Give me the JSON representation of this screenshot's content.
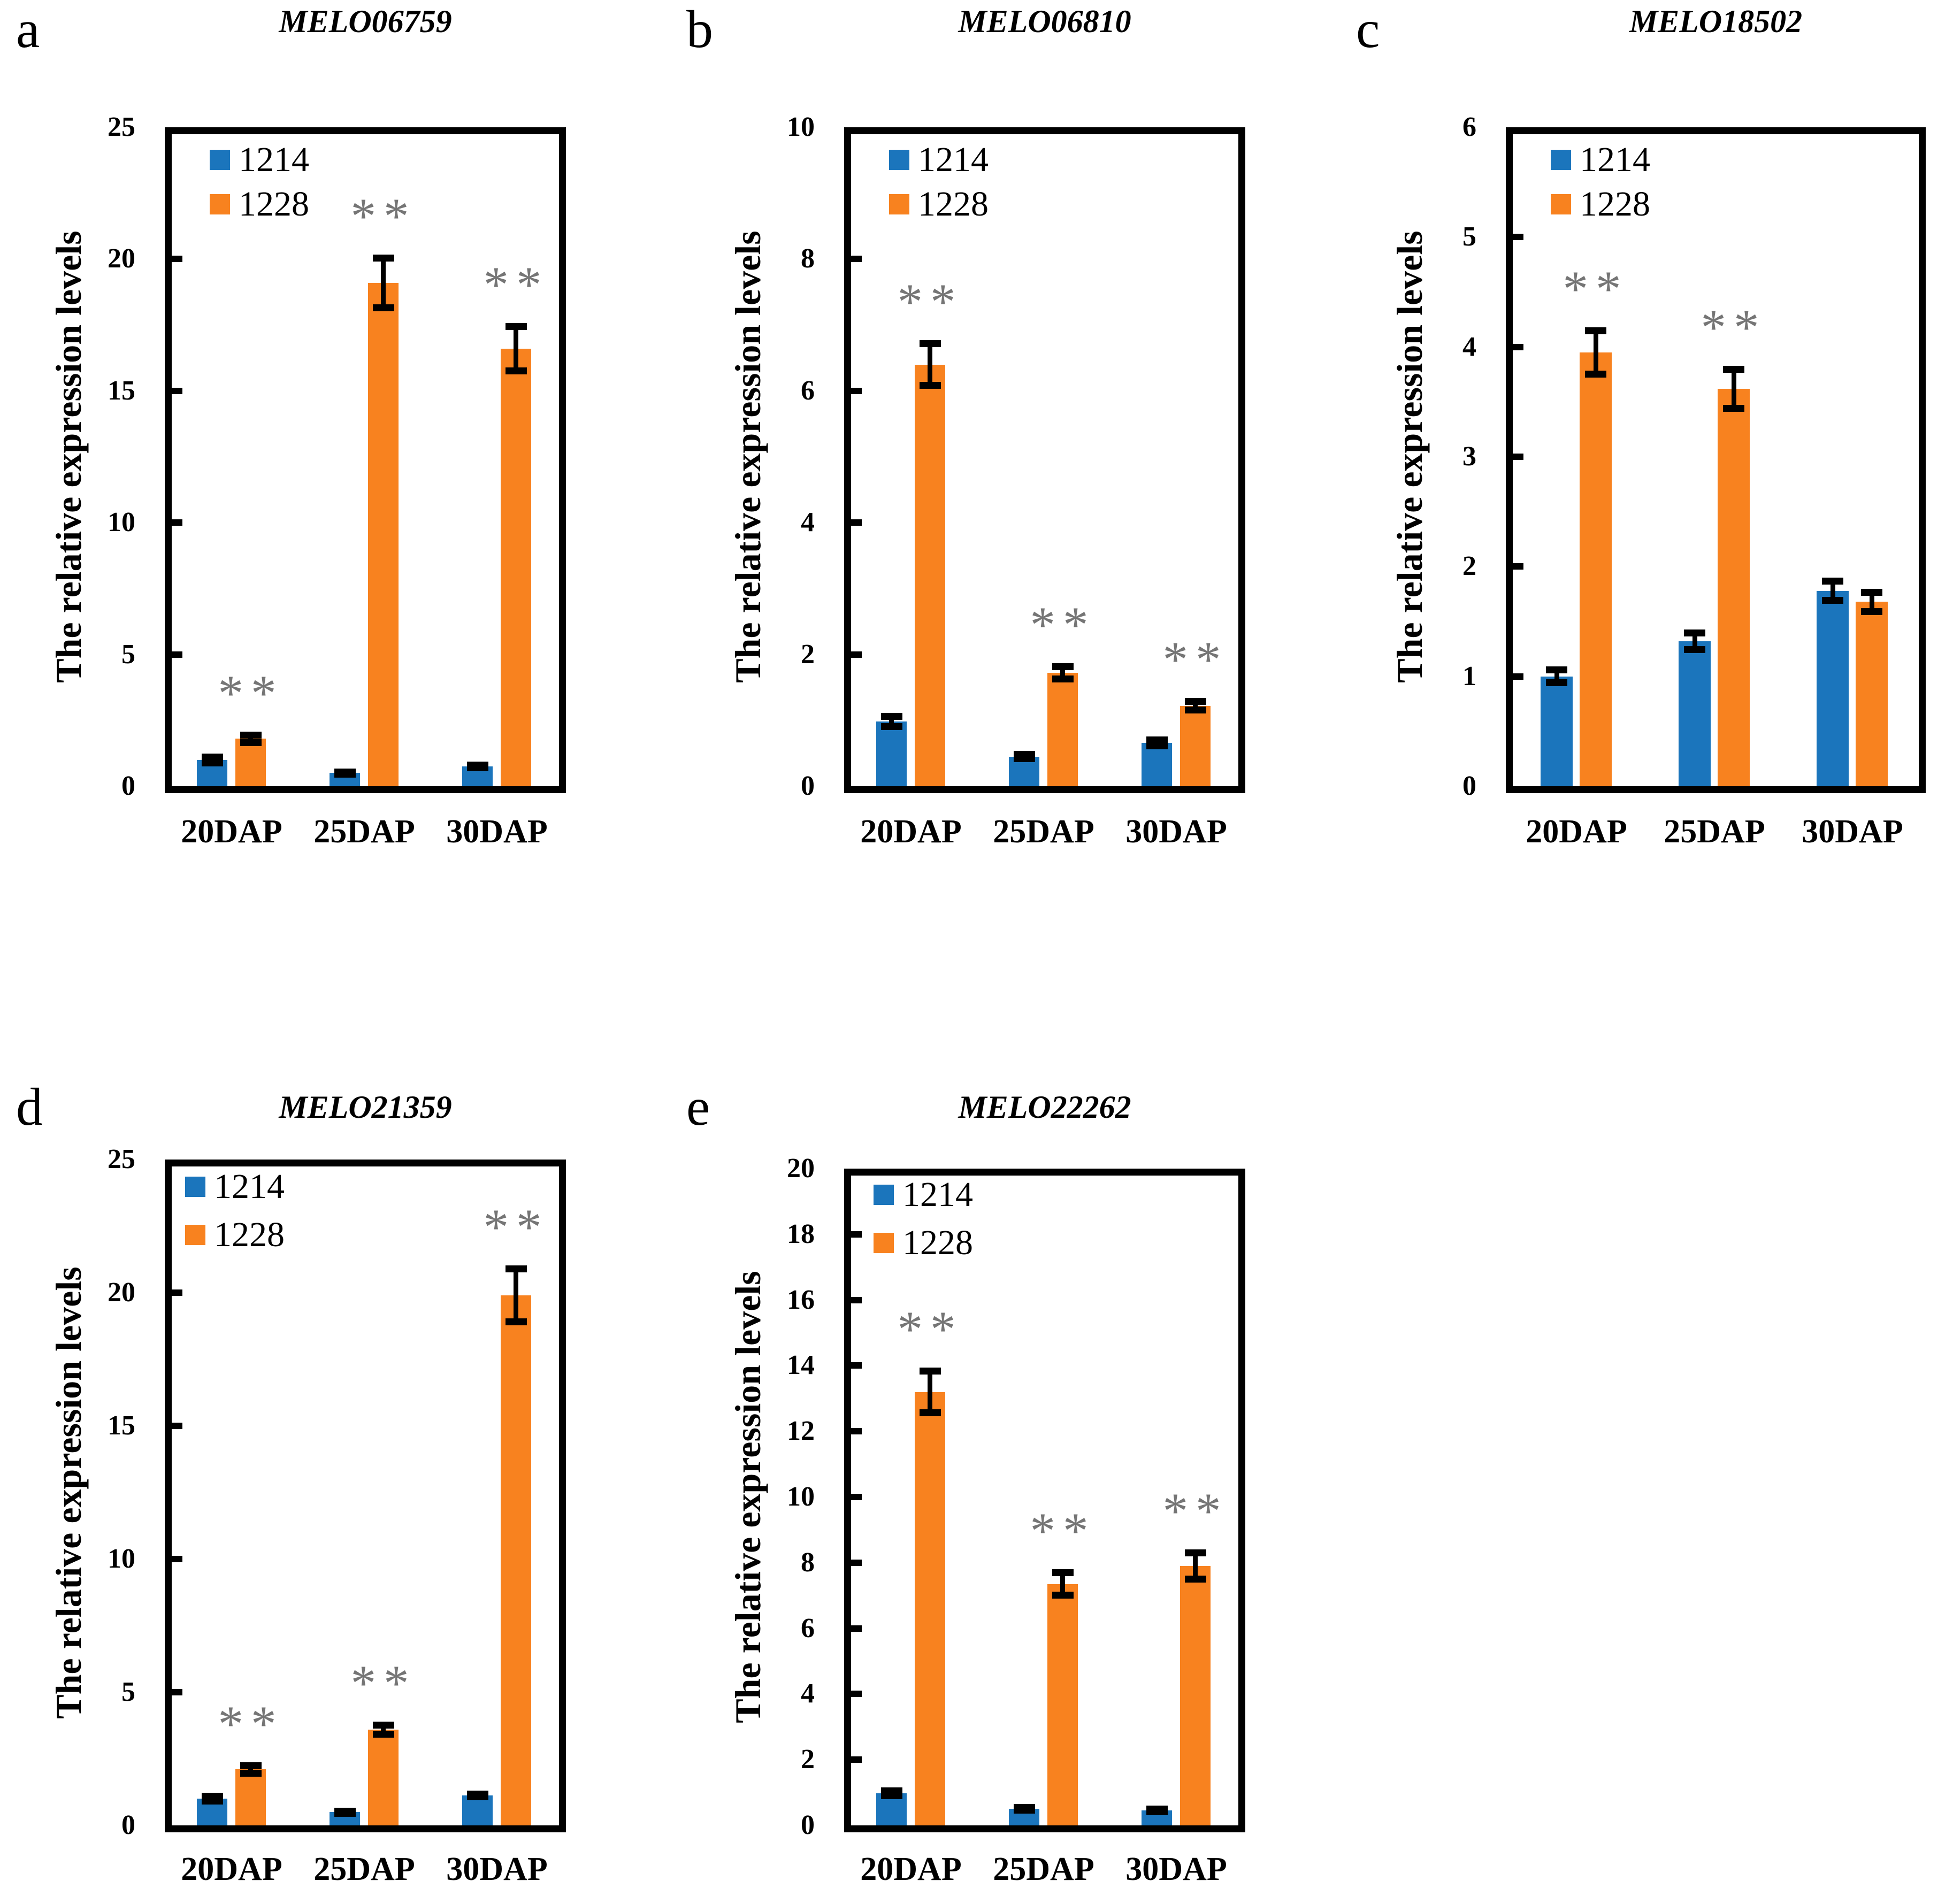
{
  "colors": {
    "series_1214": "#1B75BC",
    "series_1228": "#F8821F",
    "significance": "#757575",
    "axis": "#000000"
  },
  "chart_data": [
    {
      "type": "bar",
      "panel_label": "a",
      "title": "MELO06759",
      "ylabel": "The relative expression levels",
      "xlabel": "",
      "categories": [
        "20DAP",
        "25DAP",
        "30DAP"
      ],
      "ylim": [
        0,
        25
      ],
      "ystep": 5,
      "grid": false,
      "legend_position": "upper-left",
      "series": [
        {
          "name": "1214",
          "color": "#1B75BC",
          "values": [
            1.0,
            0.5,
            0.75
          ],
          "errors": [
            0.12,
            0.05,
            0.06
          ]
        },
        {
          "name": "1228",
          "color": "#F8821F",
          "values": [
            1.8,
            19.1,
            16.6
          ],
          "errors": [
            0.15,
            0.95,
            0.85
          ]
        }
      ],
      "significance": [
        "**",
        "**",
        "**"
      ]
    },
    {
      "type": "bar",
      "panel_label": "b",
      "title": "MELO06810",
      "ylabel": "The relative expression levels",
      "xlabel": "",
      "categories": [
        "20DAP",
        "25DAP",
        "30DAP"
      ],
      "ylim": [
        0,
        10
      ],
      "ystep": 2,
      "grid": false,
      "legend_position": "upper-left",
      "series": [
        {
          "name": "1214",
          "color": "#1B75BC",
          "values": [
            0.98,
            0.45,
            0.66
          ],
          "errors": [
            0.08,
            0.04,
            0.05
          ]
        },
        {
          "name": "1228",
          "color": "#F8821F",
          "values": [
            6.4,
            1.72,
            1.22
          ],
          "errors": [
            0.32,
            0.1,
            0.07
          ]
        }
      ],
      "significance": [
        "**",
        "**",
        "**"
      ]
    },
    {
      "type": "bar",
      "panel_label": "c",
      "title": "MELO18502",
      "ylabel": "The relative expression levels",
      "xlabel": "",
      "categories": [
        "20DAP",
        "25DAP",
        "30DAP"
      ],
      "ylim": [
        0,
        6
      ],
      "ystep": 1,
      "grid": false,
      "legend_position": "upper-left",
      "series": [
        {
          "name": "1214",
          "color": "#1B75BC",
          "values": [
            1.0,
            1.32,
            1.78
          ],
          "errors": [
            0.06,
            0.08,
            0.09
          ]
        },
        {
          "name": "1228",
          "color": "#F8821F",
          "values": [
            3.95,
            3.62,
            1.68
          ],
          "errors": [
            0.2,
            0.18,
            0.09
          ]
        }
      ],
      "significance": [
        "**",
        "**",
        null
      ]
    },
    {
      "type": "bar",
      "panel_label": "d",
      "title": "MELO21359",
      "ylabel": "The relative expression levels",
      "xlabel": "",
      "categories": [
        "20DAP",
        "25DAP",
        "30DAP"
      ],
      "ylim": [
        0,
        25
      ],
      "ystep": 5,
      "grid": false,
      "legend_position": "upper-left",
      "series": [
        {
          "name": "1214",
          "color": "#1B75BC",
          "values": [
            1.0,
            0.5,
            1.12
          ],
          "errors": [
            0.1,
            0.05,
            0.06
          ]
        },
        {
          "name": "1228",
          "color": "#F8821F",
          "values": [
            2.1,
            3.6,
            19.9
          ],
          "errors": [
            0.15,
            0.18,
            1.0
          ]
        }
      ],
      "significance": [
        "**",
        "**",
        "**"
      ]
    },
    {
      "type": "bar",
      "panel_label": "e",
      "title": "MELO22262",
      "ylabel": "The relative expression levels",
      "xlabel": "",
      "categories": [
        "20DAP",
        "25DAP",
        "30DAP"
      ],
      "ylim": [
        0,
        20
      ],
      "ystep": 2,
      "grid": false,
      "legend_position": "upper-left",
      "series": [
        {
          "name": "1214",
          "color": "#1B75BC",
          "values": [
            0.98,
            0.5,
            0.45
          ],
          "errors": [
            0.08,
            0.05,
            0.05
          ]
        },
        {
          "name": "1228",
          "color": "#F8821F",
          "values": [
            13.2,
            7.35,
            7.9
          ],
          "errors": [
            0.65,
            0.35,
            0.4
          ]
        }
      ],
      "significance": [
        "**",
        "**",
        "**"
      ]
    }
  ]
}
